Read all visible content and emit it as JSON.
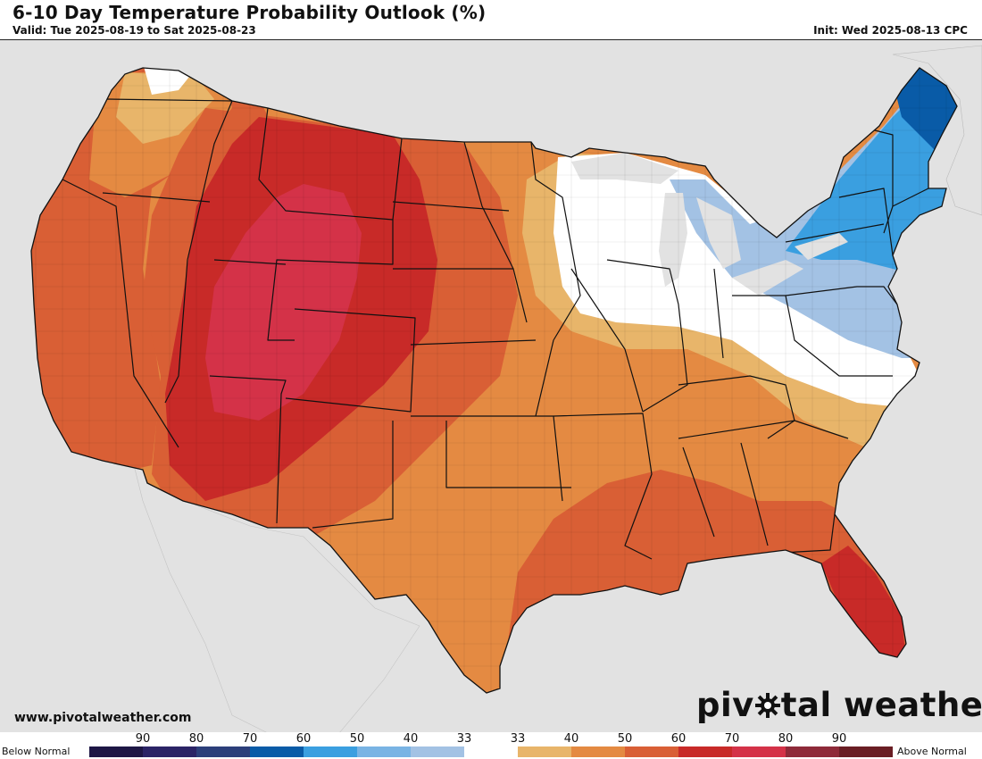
{
  "header": {
    "title": "6-10 Day Temperature Probability Outlook (%)",
    "valid": "Valid: Tue 2025-08-19 to Sat 2025-08-23",
    "init": "Init: Wed 2025-08-13 CPC"
  },
  "footer": {
    "website": "www.pivotalweather.com",
    "brand_left": "piv",
    "brand_right": "tal weather"
  },
  "legend": {
    "below_label": "Below Normal",
    "above_label": "Above Normal",
    "below_ticks": [
      "90",
      "80",
      "70",
      "60",
      "50",
      "40",
      "33"
    ],
    "above_ticks": [
      "33",
      "40",
      "50",
      "60",
      "70",
      "80",
      "90"
    ],
    "colors": [
      "#1e1745",
      "#2b2466",
      "#2c3f7a",
      "#095ba7",
      "#3a9fe0",
      "#79b4e4",
      "#a3c2e4",
      "#ffffff",
      "#e8b56a",
      "#e48a42",
      "#d95f35",
      "#c82a28",
      "#d43248",
      "#8e2a39",
      "#6a1e24"
    ]
  },
  "map_colors": {
    "land_default": "#e48a42",
    "neutral": "#ffffff",
    "above_40": "#e8b56a",
    "above_60": "#d95f35",
    "above_70": "#c82a28",
    "above_80": "#d43248",
    "below_40": "#a3c2e4",
    "below_50": "#3a9fe0",
    "below_60": "#095ba7"
  }
}
